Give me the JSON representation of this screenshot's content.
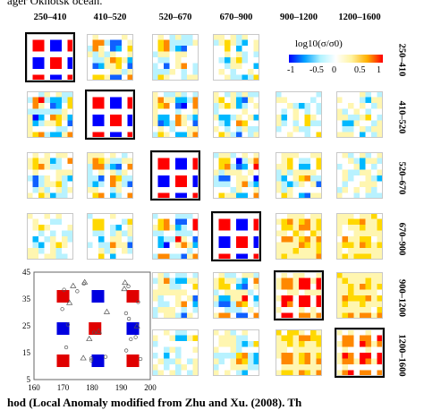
{
  "caption_fragments": {
    "top": "ager Okhotsk ocean.",
    "bottom": "hod (Local Anomaly modified from Zhu and Xu. (2008). Th"
  },
  "column_headers": [
    "250–410",
    "410–520",
    "520–670",
    "670–900",
    "900–1200",
    "1200–1600"
  ],
  "row_headers": [
    "250–410",
    "410–520",
    "520–670",
    "670–900",
    "900–1200",
    "1200–1600"
  ],
  "colorbar": {
    "title": "log10(σ/σ0)",
    "ticks": [
      "-1",
      "-0.5",
      "0",
      "0.5",
      "1"
    ],
    "colors": [
      "#0000ff",
      "#00a0ff",
      "#aef2ff",
      "#ffffff",
      "#fff3a0",
      "#ffb000",
      "#ff0000"
    ]
  },
  "diagonal_highlight": [
    {
      "row": 1,
      "col": 1
    },
    {
      "row": 2,
      "col": 2
    },
    {
      "row": 3,
      "col": 3
    },
    {
      "row": 4,
      "col": 4
    },
    {
      "row": 5,
      "col": 5
    },
    {
      "row": 6,
      "col": 6
    }
  ],
  "inset_plot": {
    "x_ticks": [
      "160",
      "170",
      "180",
      "190",
      "200"
    ],
    "y_ticks": [
      "5",
      "15",
      "25",
      "35",
      "45"
    ],
    "xlim": [
      160,
      200
    ],
    "ylim": [
      5,
      45
    ],
    "red_squares": [
      [
        170,
        36
      ],
      [
        170,
        12
      ],
      [
        181,
        24
      ],
      [
        194,
        36
      ],
      [
        194,
        12
      ]
    ],
    "blue_squares": [
      [
        182,
        36
      ],
      [
        170,
        24
      ],
      [
        194,
        24
      ],
      [
        182,
        12
      ]
    ]
  }
}
